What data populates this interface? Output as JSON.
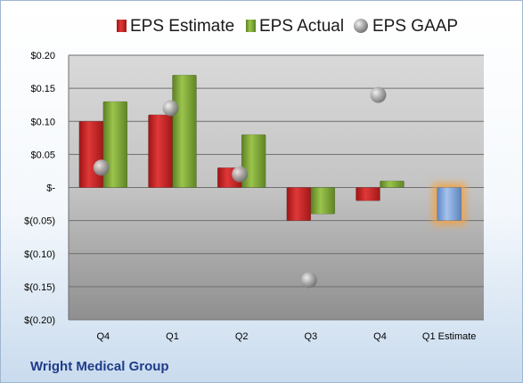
{
  "company": "Wright Medical Group",
  "legend": [
    {
      "label": "EPS Estimate",
      "icon": "red-bar-icon"
    },
    {
      "label": "EPS Actual",
      "icon": "green-bar-icon"
    },
    {
      "label": "EPS GAAP",
      "icon": "gray-ball-icon"
    }
  ],
  "colors": {
    "estimate": "#d42a2a",
    "actual": "#86b03c",
    "gaap": "#a9a9a9",
    "future_estimate": "#7fa6dc",
    "future_glow": "#f5a13c"
  },
  "chart_data": {
    "type": "bar",
    "categories": [
      "Q4",
      "Q1",
      "Q2",
      "Q3",
      "Q4",
      "Q1 Estimate"
    ],
    "series": [
      {
        "name": "EPS Estimate",
        "values": [
          0.1,
          0.11,
          0.03,
          -0.05,
          -0.02,
          -0.05
        ]
      },
      {
        "name": "EPS Actual",
        "values": [
          0.13,
          0.17,
          0.08,
          -0.04,
          0.01,
          null
        ]
      },
      {
        "name": "EPS GAAP",
        "values": [
          0.03,
          0.12,
          0.02,
          -0.14,
          0.14,
          null
        ]
      }
    ],
    "ylim": [
      -0.2,
      0.2
    ],
    "yticks": [
      0.2,
      0.15,
      0.1,
      0.05,
      0,
      -0.05,
      -0.1,
      -0.15,
      -0.2
    ],
    "ytick_labels": [
      "$0.20",
      "$0.15",
      "$0.10",
      "$0.05",
      "$-",
      "$(0.05)",
      "$(0.10)",
      "$(0.15)",
      "$(0.20)"
    ],
    "grid": true,
    "legend_position": "top"
  }
}
